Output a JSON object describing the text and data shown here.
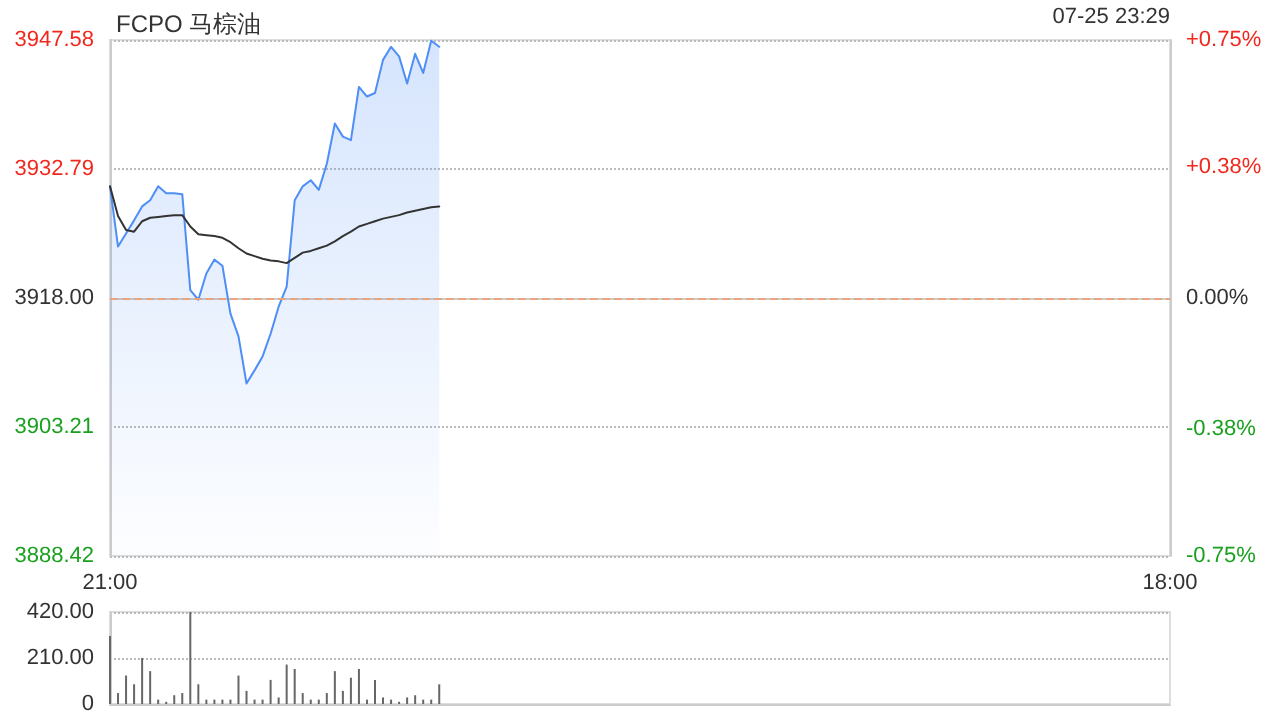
{
  "chart_data": [
    {
      "type": "line",
      "title": "FCPO 马棕油",
      "annotations": [
        "07-25 23:29"
      ],
      "categories": [
        "21:00",
        null,
        null,
        null,
        null,
        null,
        null,
        null,
        null,
        null,
        null,
        null,
        null,
        null,
        null,
        null,
        null,
        null,
        null,
        null,
        null,
        null,
        null,
        null,
        null,
        null,
        null,
        null,
        null,
        null,
        null,
        null,
        null,
        null,
        null,
        null,
        null,
        null,
        null,
        null,
        null,
        null,
        null,
        null,
        null,
        null,
        null,
        null,
        null,
        null,
        null,
        null,
        null,
        null,
        null,
        null,
        null,
        null,
        null,
        null,
        null,
        null,
        null,
        null,
        null,
        null,
        null,
        null,
        null,
        null,
        null,
        null,
        null,
        null,
        null,
        null,
        null,
        null,
        null,
        null,
        null,
        null,
        null,
        null,
        null,
        null,
        null,
        null,
        null,
        null,
        null,
        null,
        null,
        null,
        null,
        null,
        null,
        null,
        null,
        null,
        null,
        null,
        null,
        null,
        null,
        null,
        null,
        null,
        null,
        null,
        null,
        null,
        null,
        null,
        null,
        null,
        null,
        null,
        null,
        null,
        null,
        null,
        null,
        null,
        null,
        null,
        null,
        null,
        null,
        null,
        null,
        null,
        "18:00"
      ],
      "ylim": [
        3888.42,
        3947.58
      ],
      "yticks": [
        3888.42,
        3903.21,
        {
          "value": 3918,
          "label": "3918.00"
        },
        3932.79,
        3947.58
      ],
      "y2lim": [
        -0.75,
        0.75
      ],
      "y2ticks": [
        {
          "value": -0.75,
          "label": "-0.75%"
        },
        {
          "value": -0.38,
          "label": "-0.38%"
        },
        {
          "value": 0,
          "label": "0.00%"
        },
        {
          "value": 0.38,
          "label": "+0.38%"
        },
        {
          "value": 0.75,
          "label": "+0.75%"
        }
      ],
      "grid": "y",
      "marker": "none",
      "ref_lines": [
        {
          "axis": "y",
          "value": 3918,
          "color": "#e8a37f",
          "line_style": "dashed"
        }
      ],
      "series": [
        {
          "type": "area",
          "color": "#4e8ef7",
          "values": [
            3930.8,
            3923.9,
            3925.4,
            3926.9,
            3928.5,
            3929.2,
            3930.8,
            3930,
            3930,
            3929.9,
            3918.9,
            3917.8,
            3920.8,
            3922.4,
            3921.7,
            3916.2,
            3913.6,
            3908.2,
            3909.7,
            3911.3,
            3913.9,
            3917,
            3919.3,
            3929.2,
            3930.8,
            3931.5,
            3930.4,
            3933.4,
            3938,
            3936.5,
            3936.1,
            3942.2,
            3941.1,
            3941.5,
            3945.3,
            3946.8,
            3945.7,
            3942.6,
            3946,
            3943.8,
            3947.5,
            3946.8,
            null,
            null,
            null,
            null,
            null,
            null,
            null,
            null,
            null,
            null,
            null,
            null,
            null,
            null,
            null,
            null,
            null,
            null,
            null,
            null,
            null,
            null,
            null,
            null,
            null,
            null,
            null,
            null,
            null,
            null,
            null,
            null,
            null,
            null,
            null,
            null,
            null,
            null,
            null,
            null,
            null,
            null,
            null,
            null,
            null,
            null,
            null,
            null,
            null,
            null,
            null,
            null,
            null,
            null,
            null,
            null,
            null,
            null,
            null,
            null,
            null,
            null,
            null,
            null,
            null,
            null,
            null,
            null,
            null,
            null,
            null,
            null,
            null,
            null,
            null,
            null,
            null,
            null,
            null,
            null,
            null,
            null,
            null,
            null,
            null,
            null,
            null,
            null,
            null,
            null,
            null
          ]
        },
        {
          "type": "line",
          "color": "#333333",
          "values": [
            3930.8,
            3927.4,
            3925.8,
            3925.6,
            3926.8,
            3927.2,
            3927.3,
            3927.4,
            3927.5,
            3927.5,
            3926.2,
            3925.3,
            3925.2,
            3925.1,
            3924.9,
            3924.4,
            3923.7,
            3923.1,
            3922.8,
            3922.5,
            3922.3,
            3922.2,
            3922,
            3922.6,
            3923.2,
            3923.4,
            3923.7,
            3924,
            3924.5,
            3925.1,
            3925.6,
            3926.2,
            3926.5,
            3926.8,
            3927.1,
            3927.3,
            3927.5,
            3927.8,
            3928,
            3928.2,
            3928.4,
            3928.5,
            null,
            null,
            null,
            null,
            null,
            null,
            null,
            null,
            null,
            null,
            null,
            null,
            null,
            null,
            null,
            null,
            null,
            null,
            null,
            null,
            null,
            null,
            null,
            null,
            null,
            null,
            null,
            null,
            null,
            null,
            null,
            null,
            null,
            null,
            null,
            null,
            null,
            null,
            null,
            null,
            null,
            null,
            null,
            null,
            null,
            null,
            null,
            null,
            null,
            null,
            null,
            null,
            null,
            null,
            null,
            null,
            null,
            null,
            null,
            null,
            null,
            null,
            null,
            null,
            null,
            null,
            null,
            null,
            null,
            null,
            null,
            null,
            null,
            null,
            null,
            null,
            null,
            null,
            null,
            null,
            null,
            null,
            null,
            null,
            null,
            null,
            null,
            null,
            null,
            null,
            null
          ]
        }
      ]
    },
    {
      "type": "bar",
      "tick_labels": "y",
      "grid": "y",
      "color": "#666666",
      "categories": [
        null,
        null,
        null,
        null,
        null,
        null,
        null,
        null,
        null,
        null,
        null,
        null,
        null,
        null,
        null,
        null,
        null,
        null,
        null,
        null,
        null,
        null,
        null,
        null,
        null,
        null,
        null,
        null,
        null,
        null,
        null,
        null,
        null,
        null,
        null,
        null,
        null,
        null,
        null,
        null,
        null,
        null,
        null,
        null,
        null,
        null,
        null,
        null,
        null,
        null,
        null,
        null,
        null,
        null,
        null,
        null,
        null,
        null,
        null,
        null,
        null,
        null,
        null,
        null,
        null,
        null,
        null,
        null,
        null,
        null,
        null,
        null,
        null,
        null,
        null,
        null,
        null,
        null,
        null,
        null,
        null,
        null,
        null,
        null,
        null,
        null,
        null,
        null,
        null,
        null,
        null,
        null,
        null,
        null,
        null,
        null,
        null,
        null,
        null,
        null,
        null,
        null,
        null,
        null,
        null,
        null,
        null,
        null,
        null,
        null,
        null,
        null,
        null,
        null,
        null,
        null,
        null,
        null,
        null,
        null,
        null,
        null,
        null,
        null,
        null,
        null,
        null,
        null,
        null,
        null,
        null,
        null,
        null
      ],
      "ylim": [
        0,
        420
      ],
      "yticks": [
        0,
        {
          "value": 210,
          "label": "210.00"
        },
        {
          "value": 420,
          "label": "420.00"
        }
      ],
      "values": [
        310,
        50,
        130,
        90,
        210,
        150,
        20,
        10,
        40,
        50,
        420,
        90,
        20,
        20,
        20,
        20,
        130,
        60,
        20,
        20,
        110,
        30,
        180,
        160,
        50,
        20,
        20,
        50,
        150,
        60,
        120,
        160,
        20,
        110,
        30,
        20,
        10,
        30,
        40,
        20,
        20,
        90,
        null,
        null,
        null,
        null,
        null,
        null,
        null,
        null,
        null,
        null,
        null,
        null,
        null,
        null,
        null,
        null,
        null,
        null,
        null,
        null,
        null,
        null,
        null,
        null,
        null,
        null,
        null,
        null,
        null,
        null,
        null,
        null,
        null,
        null,
        null,
        null,
        null,
        null,
        null,
        null,
        null,
        null,
        null,
        null,
        null,
        null,
        null,
        null,
        null,
        null,
        null,
        null,
        null,
        null,
        null,
        null,
        null,
        null,
        null,
        null,
        null,
        null,
        null,
        null,
        null,
        null,
        null,
        null,
        null,
        null,
        null,
        null,
        null,
        null,
        null,
        null,
        null,
        null,
        null,
        null,
        null,
        null,
        null,
        null,
        null,
        null,
        null,
        null,
        null,
        null,
        null
      ]
    }
  ]
}
